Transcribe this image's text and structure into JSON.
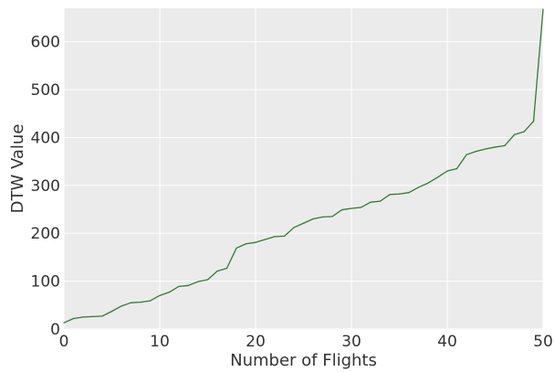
{
  "chart_data": {
    "type": "line",
    "title": "",
    "xlabel": "Number of Flights",
    "ylabel": "DTW Value",
    "xlim": [
      0,
      50
    ],
    "ylim": [
      0,
      670
    ],
    "xticks": [
      0,
      10,
      20,
      30,
      40,
      50
    ],
    "yticks": [
      0,
      100,
      200,
      300,
      400,
      500,
      600
    ],
    "grid": true,
    "legend": "none",
    "colors": {
      "background": "#ebebeb",
      "grid": "#ffffff",
      "line": "#2e7d32"
    },
    "series": [
      {
        "x": [
          0,
          1,
          2,
          3,
          4,
          5,
          6,
          7,
          8,
          9,
          10,
          11,
          12,
          13,
          14,
          15,
          16,
          17,
          18,
          19,
          20,
          21,
          22,
          23,
          24,
          25,
          26,
          27,
          28,
          29,
          30,
          31,
          32,
          33,
          34,
          35,
          36,
          37,
          38,
          39,
          40,
          41,
          42,
          43,
          44,
          45,
          46,
          47,
          48,
          49,
          50
        ],
        "y": [
          13,
          22,
          25,
          26,
          27,
          37,
          48,
          55,
          56,
          59,
          70,
          77,
          89,
          91,
          99,
          103,
          121,
          127,
          169,
          178,
          181,
          187,
          193,
          194,
          212,
          221,
          230,
          234,
          235,
          249,
          252,
          254,
          265,
          267,
          281,
          282,
          285,
          296,
          305,
          317,
          330,
          335,
          364,
          371,
          376,
          380,
          383,
          406,
          412,
          434,
          668
        ]
      }
    ]
  }
}
